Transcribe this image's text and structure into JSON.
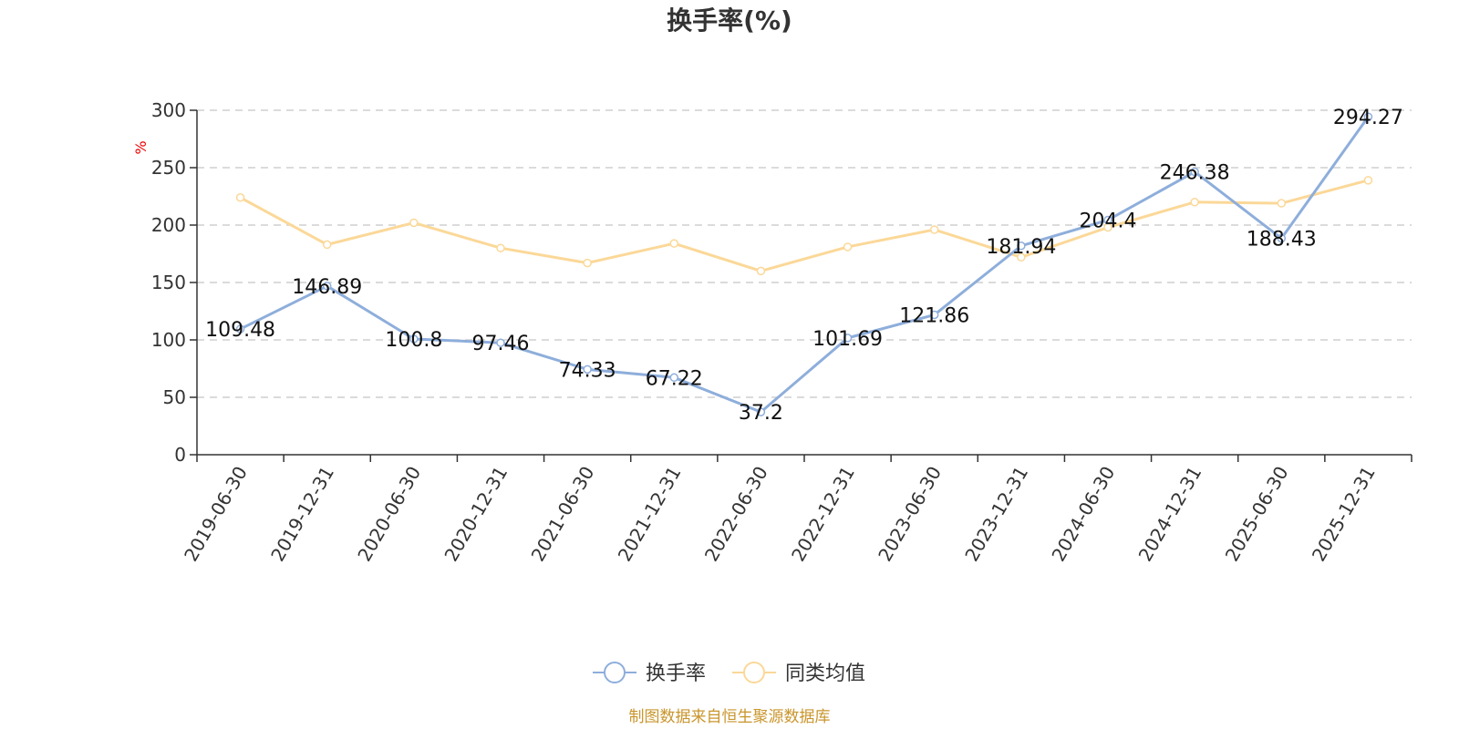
{
  "chart_data": {
    "type": "line",
    "title": "换手率(%)",
    "y_unit": "%",
    "categories": [
      "2019-06-30",
      "2019-12-31",
      "2020-06-30",
      "2020-12-31",
      "2021-06-30",
      "2021-12-31",
      "2022-06-30",
      "2022-12-31",
      "2023-06-30",
      "2023-12-31",
      "2024-06-30",
      "2024-12-31",
      "2025-06-30",
      "2025-12-31"
    ],
    "series": [
      {
        "name": "换手率",
        "color": "#8eaedb",
        "values": [
          109.48,
          146.89,
          100.8,
          97.46,
          74.33,
          67.22,
          37.2,
          101.69,
          121.86,
          181.94,
          204.4,
          246.38,
          188.43,
          294.27
        ],
        "labels": [
          "109.48",
          "146.89",
          "100.8",
          "97.46",
          "74.33",
          "67.22",
          "37.2",
          "101.69",
          "121.86",
          "181.94",
          "204.4",
          "246.38",
          "188.43",
          "294.27"
        ]
      },
      {
        "name": "同类均值",
        "color": "#fbd898",
        "values": [
          224,
          183,
          202,
          180,
          167,
          184,
          160,
          181,
          196,
          172,
          198,
          220,
          219,
          239
        ]
      }
    ],
    "y_ticks": [
      "0",
      "50",
      "100",
      "150",
      "200",
      "250",
      "300"
    ],
    "ylim": [
      0,
      300
    ],
    "grid": true,
    "legend_position": "bottom-center"
  },
  "source_note": "制图数据来自恒生聚源数据库"
}
